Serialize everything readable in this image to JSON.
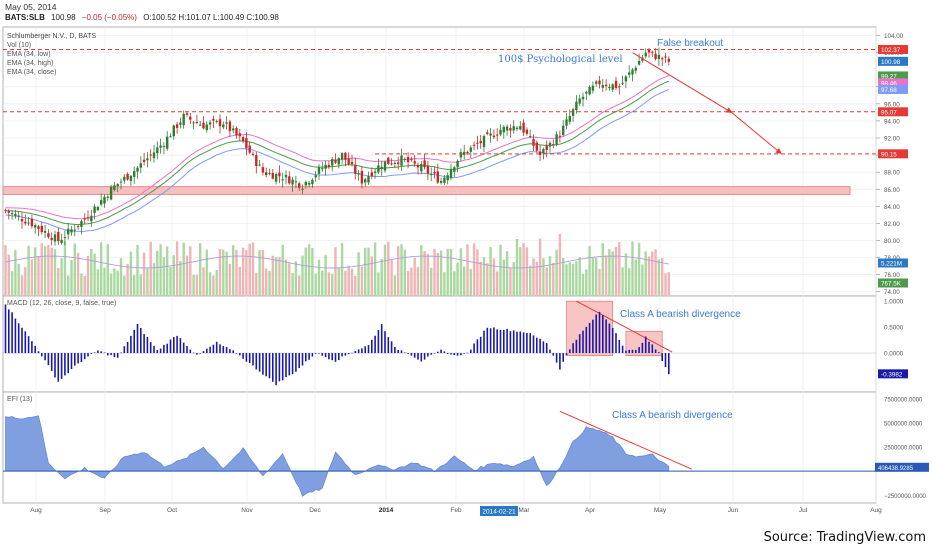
{
  "header": {
    "date": "May 05, 2014",
    "symbol": "BATS:SLB",
    "last": "100.98",
    "change": "−0.05 (−0.05%)",
    "ohlc": "O:100.52 H:101.07 L:100.49 C:100.98"
  },
  "main_legend": [
    "Schlumberger N.V., D, BATS",
    "Vol (10)",
    "EMA (34, low)",
    "EMA (34, high)",
    "EMA (34, close)"
  ],
  "macd_legend": "MACD (12, 26, close, 9, false, true)",
  "efi_legend": "EFI (13)",
  "source": "Source: TradingView.com",
  "colors": {
    "up": "#2e7d32",
    "down": "#c62828",
    "vol_up": "#a9d8a0",
    "vol_down": "#f0b4b4",
    "ema_low": "#7f9cf5",
    "ema_high": "#e573c9",
    "ema_close": "#4c9a4c",
    "macd": "#1a1aa8",
    "efi_fill": "#7f9fe0",
    "annot_blue": "#3a7bd5",
    "resistance": "#e53935"
  },
  "chart_data": [
    {
      "type": "candlestick",
      "title": "Schlumberger N.V., D, BATS",
      "y_axis_ticks": [
        74.0,
        76.0,
        78.0,
        80.0,
        82.0,
        84.0,
        86.0,
        88.0,
        90.0,
        92.0,
        94.0,
        96.0,
        98.0,
        102.0,
        104.0
      ],
      "ylim": [
        73.5,
        105
      ],
      "x_axis_labels": [
        "Aug",
        "Sep",
        "Oct",
        "Nov",
        "Dec",
        "2014",
        "Feb",
        "Mar",
        "Apr",
        "May",
        "Jun",
        "Jul",
        "Aug"
      ],
      "highlighted_date": "2014-02-21",
      "price_badges": [
        {
          "value": "102.37",
          "color": "#e53935"
        },
        {
          "value": "100.98",
          "color": "#2b78c5"
        },
        {
          "value": "99.27",
          "color": "#4c9a4c"
        },
        {
          "value": "98.46",
          "color": "#e573c9"
        },
        {
          "value": "97.68",
          "color": "#7f9cf5"
        },
        {
          "value": "95.07",
          "color": "#e53935"
        },
        {
          "value": "90.15",
          "color": "#e53935"
        },
        {
          "value": "5.221M",
          "color": "#2b78c5"
        },
        {
          "value": "767.5K",
          "color": "#4c9a4c"
        }
      ],
      "resistance_levels": [
        102.37,
        95.07,
        90.15
      ],
      "support_zone": [
        85.4,
        86.3
      ],
      "close_waypoints": [
        [
          0,
          83.5
        ],
        [
          8,
          82.0
        ],
        [
          16,
          80.0
        ],
        [
          24,
          82.5
        ],
        [
          32,
          86.0
        ],
        [
          40,
          88.5
        ],
        [
          48,
          91.5
        ],
        [
          54,
          94.5
        ],
        [
          60,
          93.5
        ],
        [
          66,
          93.8
        ],
        [
          72,
          91.5
        ],
        [
          78,
          88.0
        ],
        [
          84,
          87.5
        ],
        [
          90,
          86.5
        ],
        [
          96,
          88.5
        ],
        [
          102,
          90.0
        ],
        [
          108,
          87.0
        ],
        [
          114,
          89.0
        ],
        [
          120,
          89.5
        ],
        [
          126,
          88.5
        ],
        [
          132,
          87.0
        ],
        [
          138,
          90.0
        ],
        [
          144,
          91.5
        ],
        [
          150,
          93.0
        ],
        [
          156,
          93.5
        ],
        [
          162,
          90.0
        ],
        [
          168,
          92.5
        ],
        [
          174,
          96.5
        ],
        [
          180,
          98.5
        ],
        [
          186,
          98.0
        ],
        [
          190,
          100.0
        ],
        [
          194,
          102.0
        ],
        [
          198,
          101.5
        ],
        [
          201,
          100.98
        ]
      ],
      "annotations": [
        {
          "text": "False breakout",
          "color": "#3a7bd5"
        },
        {
          "text": "100$ Psychological level",
          "color": "#3a7bd5"
        }
      ],
      "projection_arrow": [
        [
          190,
          102.0
        ],
        [
          220,
          95.0
        ],
        [
          235,
          90.2
        ]
      ]
    },
    {
      "type": "bar",
      "name": "MACD (12, 26, close, 9, false, true)",
      "y_axis_ticks": [
        "1.0000",
        "0.5000",
        "0.0000"
      ],
      "ylim": [
        -0.75,
        1.1
      ],
      "last_value": "-0.3982",
      "waypoints": [
        [
          0,
          0.95
        ],
        [
          5,
          0.5
        ],
        [
          10,
          0.05
        ],
        [
          16,
          -0.55
        ],
        [
          22,
          -0.2
        ],
        [
          28,
          0.05
        ],
        [
          34,
          -0.1
        ],
        [
          40,
          0.55
        ],
        [
          46,
          0.05
        ],
        [
          52,
          0.35
        ],
        [
          58,
          -0.05
        ],
        [
          64,
          0.2
        ],
        [
          70,
          0.0
        ],
        [
          76,
          -0.3
        ],
        [
          82,
          -0.6
        ],
        [
          88,
          -0.35
        ],
        [
          94,
          0.0
        ],
        [
          100,
          -0.15
        ],
        [
          106,
          0.05
        ],
        [
          110,
          0.15
        ],
        [
          114,
          0.55
        ],
        [
          118,
          0.1
        ],
        [
          122,
          0.0
        ],
        [
          126,
          -0.15
        ],
        [
          132,
          0.05
        ],
        [
          136,
          -0.05
        ],
        [
          140,
          0.0
        ],
        [
          146,
          0.5
        ],
        [
          152,
          0.45
        ],
        [
          158,
          0.4
        ],
        [
          164,
          0.2
        ],
        [
          168,
          -0.3
        ],
        [
          172,
          0.2
        ],
        [
          176,
          0.5
        ],
        [
          180,
          0.8
        ],
        [
          184,
          0.5
        ],
        [
          188,
          0.05
        ],
        [
          191,
          0.05
        ],
        [
          194,
          0.3
        ],
        [
          198,
          0.0
        ],
        [
          201,
          -0.4
        ]
      ],
      "divergence_label": "Class A bearish divergence"
    },
    {
      "type": "area",
      "name": "EFI (13)",
      "y_axis_ticks": [
        "7500000.0000",
        "5000000.0000",
        "2500000.0000",
        "0.0000",
        "−2500000.0000"
      ],
      "ylim": [
        -3300000,
        8200000
      ],
      "last_value": "406438.9285",
      "waypoints": [
        [
          0,
          5600000
        ],
        [
          6,
          5500000
        ],
        [
          10,
          5800000
        ],
        [
          13,
          800000
        ],
        [
          18,
          -700000
        ],
        [
          24,
          300000
        ],
        [
          30,
          -800000
        ],
        [
          36,
          1500000
        ],
        [
          42,
          2000000
        ],
        [
          48,
          500000
        ],
        [
          54,
          1200000
        ],
        [
          60,
          2500000
        ],
        [
          66,
          300000
        ],
        [
          72,
          2300000
        ],
        [
          78,
          -500000
        ],
        [
          84,
          1800000
        ],
        [
          90,
          -2500000
        ],
        [
          96,
          -1800000
        ],
        [
          100,
          2000000
        ],
        [
          106,
          -400000
        ],
        [
          112,
          600000
        ],
        [
          118,
          200000
        ],
        [
          124,
          900000
        ],
        [
          130,
          0
        ],
        [
          136,
          1500000
        ],
        [
          142,
          100000
        ],
        [
          148,
          900000
        ],
        [
          154,
          500000
        ],
        [
          160,
          1500000
        ],
        [
          164,
          -1600000
        ],
        [
          168,
          400000
        ],
        [
          172,
          3000000
        ],
        [
          176,
          4500000
        ],
        [
          180,
          4200000
        ],
        [
          184,
          3500000
        ],
        [
          188,
          1800000
        ],
        [
          192,
          1500000
        ],
        [
          196,
          1700000
        ],
        [
          201,
          400000
        ]
      ],
      "divergence_label": "Class A bearish divergence"
    }
  ]
}
